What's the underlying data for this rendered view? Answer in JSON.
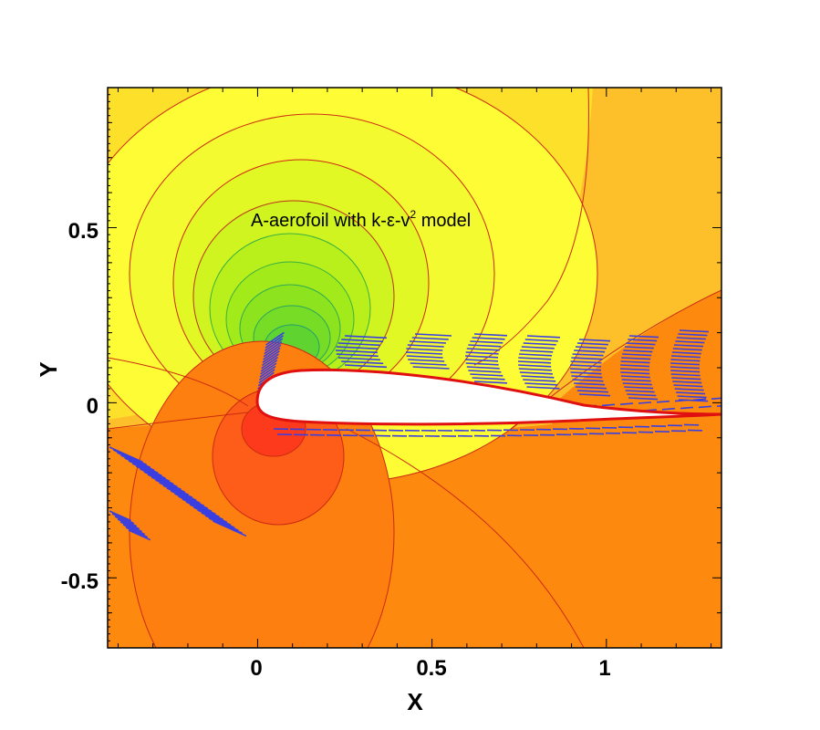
{
  "chart_data": {
    "type": "contour",
    "title": "",
    "annotation": {
      "text_main": "A-aerofoil with k-",
      "epsilon": "ε",
      "text_v": "-v",
      "superscript": "2",
      "text_end": " model"
    },
    "xlabel": "X",
    "ylabel": "Y",
    "xlim": [
      -0.43,
      1.33
    ],
    "ylim": [
      -0.7,
      0.9
    ],
    "xticks": [
      {
        "value": 0,
        "label": "0"
      },
      {
        "value": 0.5,
        "label": "0.5"
      },
      {
        "value": 1,
        "label": "1"
      }
    ],
    "yticks": [
      {
        "value": 0.5,
        "label": "0.5"
      },
      {
        "value": 0,
        "label": "0"
      },
      {
        "value": -0.5,
        "label": "-0.5"
      }
    ],
    "grid": false,
    "legend": "none",
    "series": [
      {
        "kind": "filled-contours"
      },
      {
        "kind": "velocity-vectors"
      }
    ],
    "colors": {
      "contour_line": "#d02010",
      "contour_line_low": "#20b040",
      "vector": "#3b3fe0",
      "airfoil_outline": "#e01010",
      "airfoil_fill": "#ffffff"
    }
  }
}
